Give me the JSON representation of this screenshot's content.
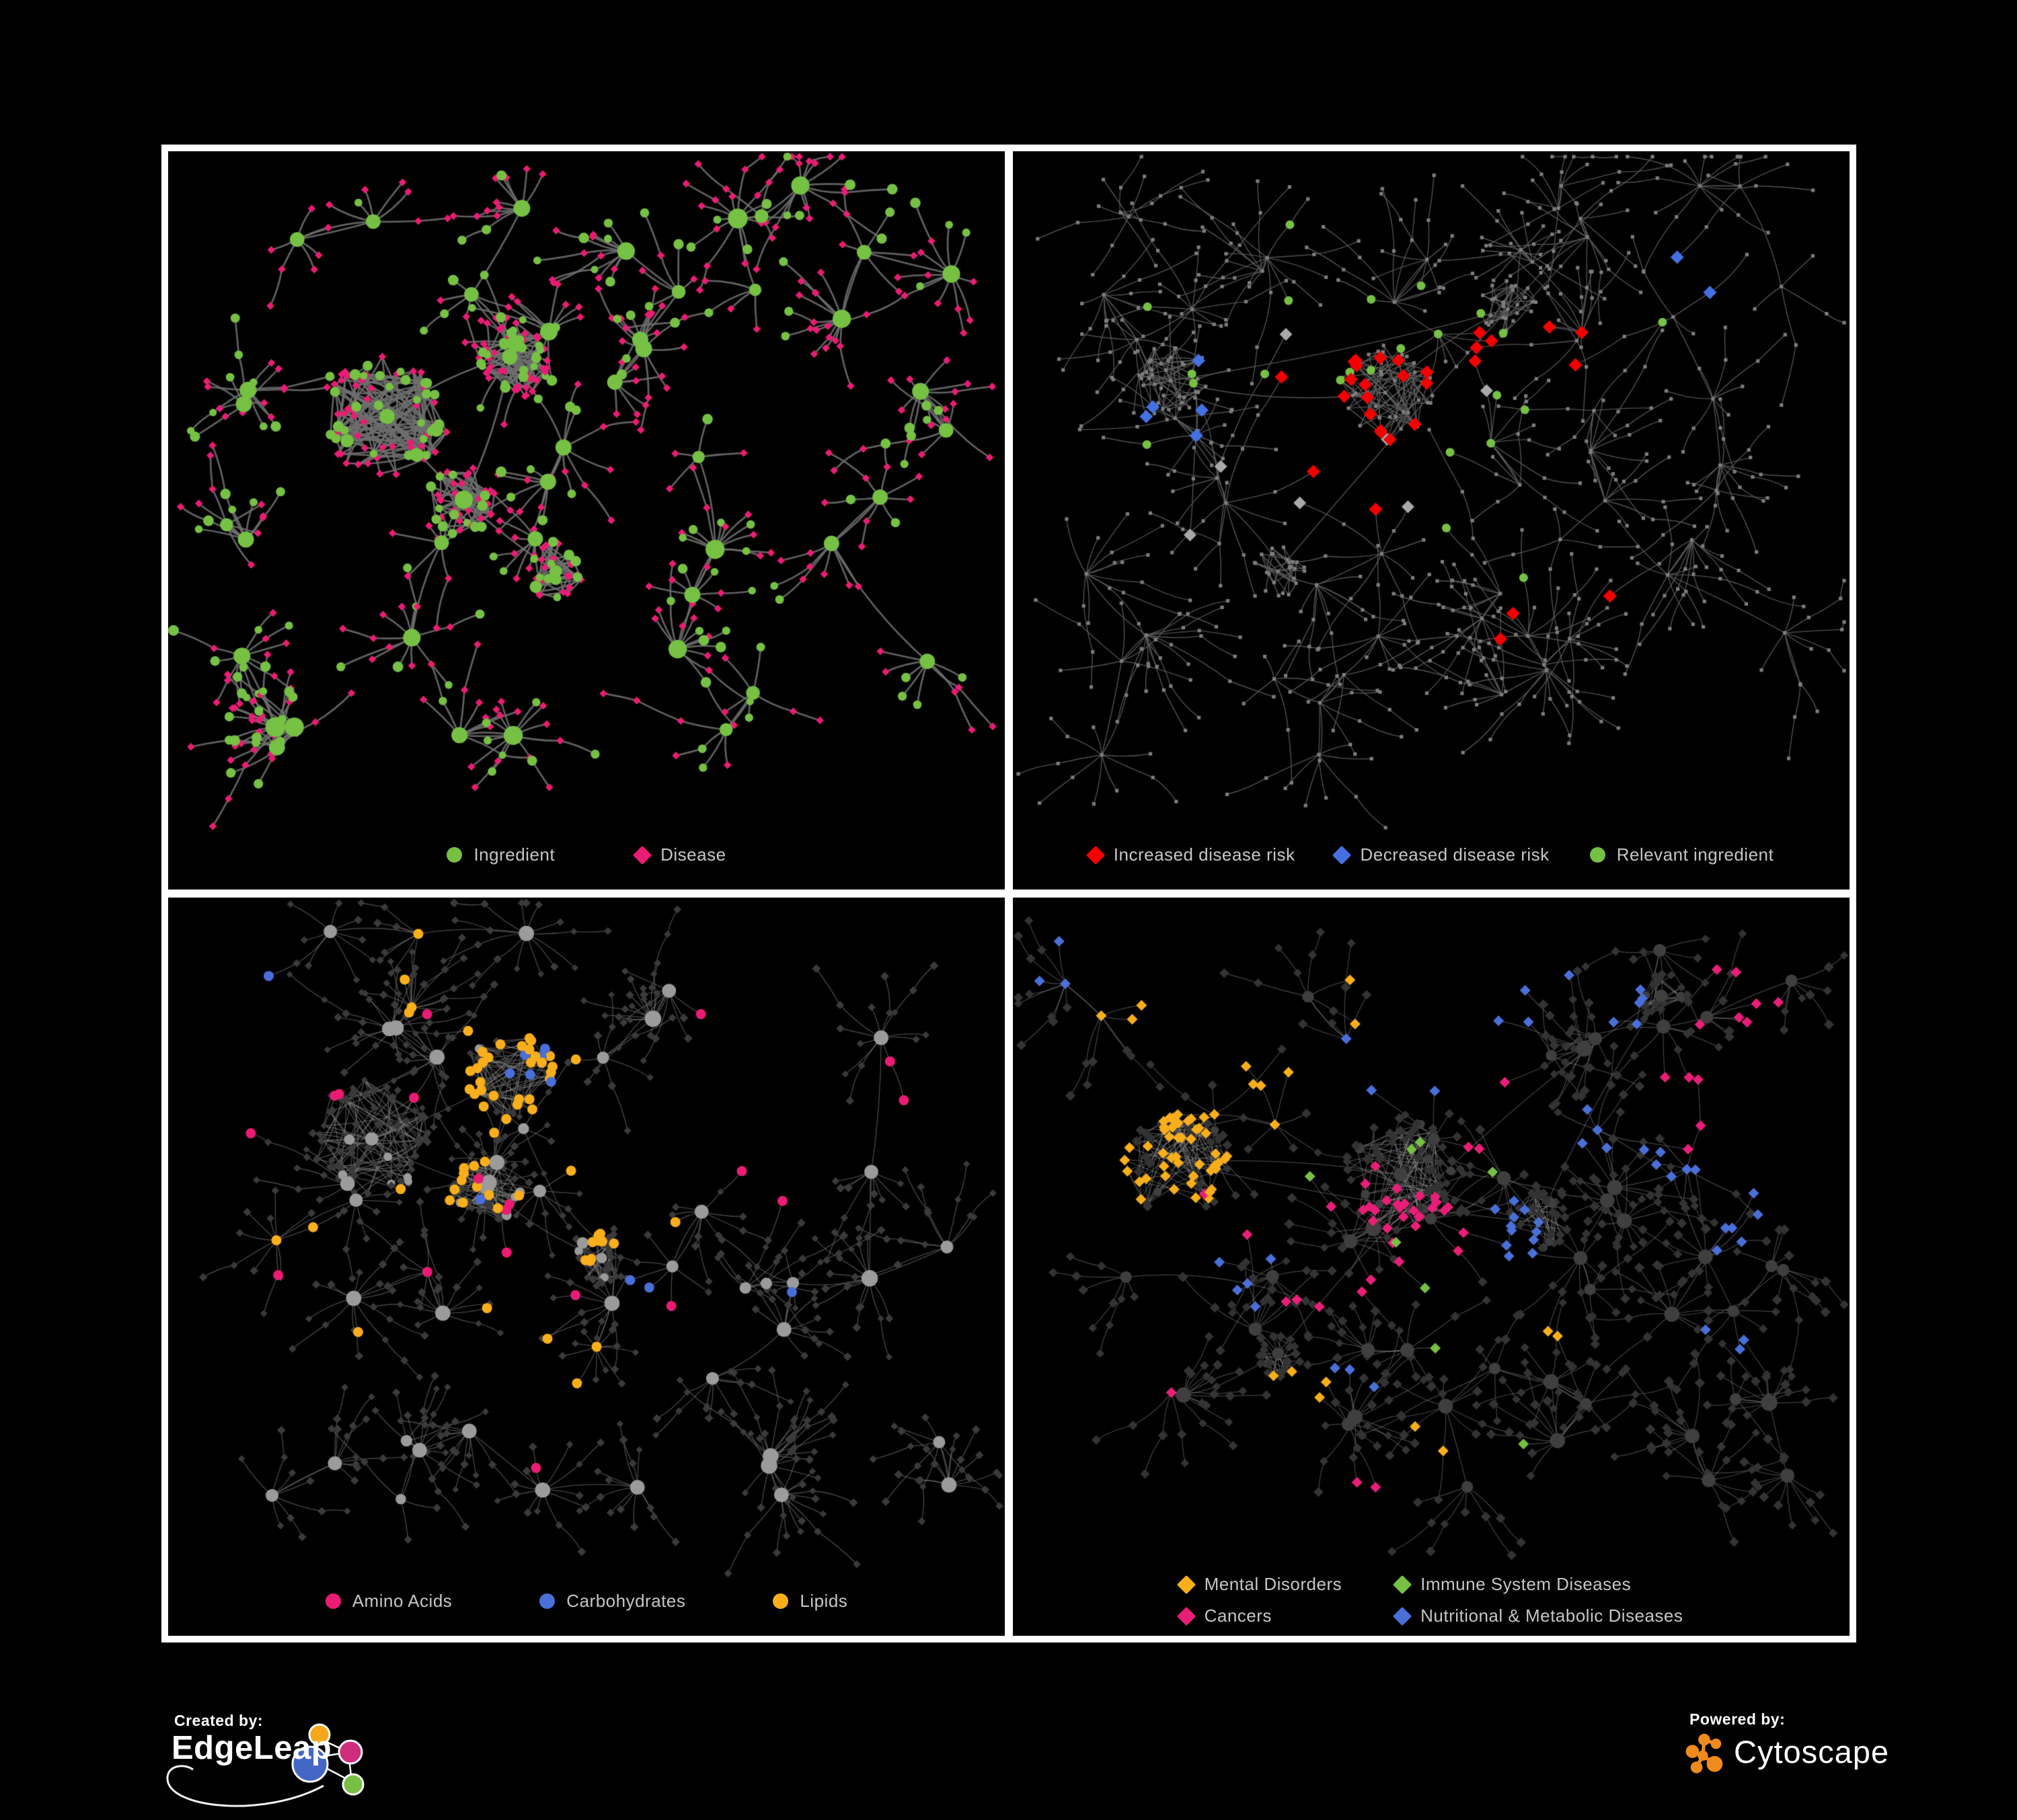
{
  "branding": {
    "created_by_label": "Created by:",
    "created_by_name": "EdgeLeap",
    "powered_by_label": "Powered by:",
    "powered_by_name": "Cytoscape"
  },
  "colors": {
    "background": "#000000",
    "frame": "#ffffff",
    "legend_text": "#c6c6c6",
    "green": "#76C043",
    "disease_pink": "#EA1C74",
    "risk_red": "#F40000",
    "risk_blue": "#4470E2",
    "amber": "#F9AE1B",
    "cancer_pink": "#E91E78",
    "metabolic_blue": "#4A6FD8",
    "edgeleap_orange": "#F5A81C",
    "edgeleap_magenta": "#CF2D7B",
    "edgeleap_blue": "#4467C6",
    "edgeleap_green": "#76BF44",
    "cytoscape_orange": "#EF8B1C"
  },
  "chart_data": {
    "type": "network",
    "panels": [
      {
        "id": "ingredient-disease",
        "legend_gap": "120px",
        "legend": [
          {
            "label": "Ingredient",
            "shape": "circle",
            "color": "#76C043"
          },
          {
            "label": "Disease",
            "shape": "diamond",
            "color": "#EA1C74"
          }
        ],
        "network": {
          "seed": 101,
          "stars": 44,
          "leafRange": [
            4,
            12
          ],
          "chain": 0.32,
          "distScale": 1.0,
          "hairballs": [
            [
              0.24,
              0.4,
              0.105,
              78
            ],
            [
              0.4,
              0.3,
              0.075,
              52
            ],
            [
              0.34,
              0.54,
              0.06,
              38
            ],
            [
              0.46,
              0.66,
              0.05,
              30
            ]
          ],
          "edge": {
            "color": "#6E6E6E",
            "width": 2.7,
            "alpha": 0.88
          },
          "paint": {
            "mode": "two-class",
            "colors": [
              "#76C043",
              "#EA1C74"
            ],
            "greenLeafP": 0.3
          }
        }
      },
      {
        "id": "disease-risk",
        "legend_gap": "60px",
        "legend": [
          {
            "label": "Increased disease risk",
            "shape": "diamond",
            "color": "#F40000"
          },
          {
            "label": "Decreased disease risk",
            "shape": "diamond",
            "color": "#4470E2"
          },
          {
            "label": "Relevant ingredient",
            "shape": "circle",
            "color": "#76C043"
          }
        ],
        "network": {
          "seed": 202,
          "stars": 58,
          "leafRange": [
            4,
            11
          ],
          "chain": 0.5,
          "distScale": 1.25,
          "hairballs": [
            [
              0.44,
              0.36,
              0.08,
              55
            ],
            [
              0.16,
              0.34,
              0.06,
              32
            ],
            [
              0.6,
              0.22,
              0.05,
              26
            ],
            [
              0.3,
              0.66,
              0.045,
              22
            ]
          ],
          "edge": {
            "color": "#5F5F5F",
            "width": 1.4,
            "alpha": 0.85
          },
          "paint": {
            "mode": "highlight",
            "base": {
              "color": "#7D7D7D",
              "size": 2.6
            },
            "overlays": [
              {
                "shape": "diamond",
                "color": "#F40000",
                "size": 10,
                "groups": [
                  [
                    0.47,
                    0.37,
                    0.18,
                    20
                  ],
                  [
                    0.68,
                    0.3,
                    0.07,
                    3
                  ],
                  [
                    0.33,
                    0.33,
                    0.05,
                    2
                  ],
                  [
                    0.62,
                    0.77,
                    0.045,
                    2
                  ],
                  [
                    0.72,
                    0.67,
                    0.04,
                    1
                  ],
                  [
                    0.4,
                    0.52,
                    0.08,
                    2
                  ]
                ]
              },
              {
                "shape": "diamond",
                "color": "#4470E2",
                "size": 10,
                "groups": [
                  [
                    0.17,
                    0.35,
                    0.09,
                    5
                  ],
                  [
                    0.855,
                    0.155,
                    0.045,
                    2
                  ]
                ]
              },
              {
                "shape": "diamond",
                "color": "#A9A9A9",
                "size": 9.5,
                "groups": [
                  [
                    0.29,
                    0.4,
                    0.16,
                    3
                  ],
                  [
                    0.48,
                    0.49,
                    0.1,
                    2
                  ],
                  [
                    0.56,
                    0.38,
                    0.06,
                    1
                  ],
                  [
                    0.19,
                    0.63,
                    0.04,
                    1
                  ]
                ]
              },
              {
                "shape": "circle",
                "color": "#76C043",
                "size": 6.5,
                "groups": [
                  [
                    0.44,
                    0.35,
                    0.24,
                    14
                  ],
                  [
                    0.14,
                    0.28,
                    0.1,
                    3
                  ],
                  [
                    0.3,
                    0.15,
                    0.08,
                    2
                  ],
                  [
                    0.84,
                    0.155,
                    0.04,
                    1
                  ],
                  [
                    0.57,
                    0.57,
                    0.12,
                    2
                  ],
                  [
                    0.12,
                    0.5,
                    0.06,
                    1
                  ]
                ]
              }
            ]
          }
        }
      },
      {
        "id": "nutrient-classes",
        "legend_gap": "130px",
        "legend": [
          {
            "label": "Amino Acids",
            "shape": "circle",
            "color": "#EA1C74"
          },
          {
            "label": "Carbohydrates",
            "shape": "circle",
            "color": "#4A6FD8"
          },
          {
            "label": "Lipids",
            "shape": "circle",
            "color": "#F9AE1B"
          }
        ],
        "network": {
          "seed": 303,
          "stars": 46,
          "leafRange": [
            4,
            12
          ],
          "chain": 0.4,
          "distScale": 1.0,
          "hairballs": [
            [
              0.22,
              0.36,
              0.1,
              68
            ],
            [
              0.4,
              0.25,
              0.075,
              56
            ],
            [
              0.37,
              0.44,
              0.06,
              40
            ],
            [
              0.52,
              0.56,
              0.045,
              34
            ]
          ],
          "edge": {
            "color": "#8C8C8C",
            "width": 1.35,
            "alpha": 0.5
          },
          "paint": {
            "mode": "categorized",
            "hub": {
              "shape": "circle",
              "color": "#9B9B9B"
            },
            "leaf": {
              "shape": "diamond",
              "color": "#3A3A3A",
              "size": 5.0
            },
            "overlays": [
              {
                "shape": "circle",
                "color": "#F9AE1B",
                "size": 7.5,
                "groups": [
                  [
                    0.41,
                    0.23,
                    0.1,
                    30
                  ],
                  [
                    0.37,
                    0.4,
                    0.08,
                    10
                  ],
                  [
                    0.52,
                    0.55,
                    0.04,
                    6
                  ],
                  [
                    0.3,
                    0.63,
                    0.22,
                    6
                  ],
                  [
                    0.6,
                    0.42,
                    0.16,
                    5
                  ],
                  [
                    0.25,
                    0.08,
                    0.1,
                    4
                  ],
                  [
                    0.13,
                    0.52,
                    0.06,
                    2
                  ],
                  [
                    0.47,
                    0.75,
                    0.1,
                    3
                  ]
                ]
              },
              {
                "shape": "circle",
                "color": "#EA1C74",
                "size": 7.5,
                "groups": [
                  [
                    0.48,
                    0.63,
                    0.26,
                    7
                  ],
                  [
                    0.14,
                    0.44,
                    0.16,
                    3
                  ],
                  [
                    0.69,
                    0.32,
                    0.12,
                    3
                  ],
                  [
                    0.25,
                    0.22,
                    0.1,
                    2
                  ],
                  [
                    0.9,
                    0.26,
                    0.06,
                    2
                  ],
                  [
                    0.41,
                    0.9,
                    0.06,
                    1
                  ],
                  [
                    0.03,
                    0.25,
                    0.04,
                    1
                  ]
                ]
              },
              {
                "shape": "circle",
                "color": "#4A6FD8",
                "size": 7.5,
                "groups": [
                  [
                    0.42,
                    0.24,
                    0.055,
                    6
                  ],
                  [
                    0.08,
                    0.23,
                    0.035,
                    1
                  ],
                  [
                    0.6,
                    0.6,
                    0.08,
                    2
                  ],
                  [
                    0.77,
                    0.6,
                    0.04,
                    1
                  ],
                  [
                    0.34,
                    0.47,
                    0.04,
                    1
                  ]
                ]
              }
            ]
          }
        }
      },
      {
        "id": "disease-classes",
        "legend_layout": "grid",
        "legend": [
          {
            "label": "Mental Disorders",
            "shape": "diamond",
            "color": "#F9AE1B"
          },
          {
            "label": "Immune System Diseases",
            "shape": "diamond",
            "color": "#76C043"
          },
          {
            "label": "Cancers",
            "shape": "diamond",
            "color": "#E91E78"
          },
          {
            "label": "Nutritional & Metabolic Diseases",
            "shape": "diamond",
            "color": "#4A6FD8"
          }
        ],
        "network": {
          "seed": 404,
          "stars": 52,
          "leafRange": [
            4,
            12
          ],
          "chain": 0.42,
          "distScale": 1.05,
          "hairballs": [
            [
              0.17,
              0.4,
              0.09,
              58
            ],
            [
              0.46,
              0.42,
              0.095,
              68
            ],
            [
              0.64,
              0.5,
              0.05,
              28
            ],
            [
              0.8,
              0.12,
              0.04,
              18
            ],
            [
              0.3,
              0.72,
              0.04,
              20
            ]
          ],
          "edge": {
            "color": "#9A9A9A",
            "width": 1.25,
            "alpha": 0.42
          },
          "paint": {
            "mode": "categorized",
            "hub": {
              "shape": "circle",
              "color": "#3F3F3F"
            },
            "leaf": {
              "shape": "diamond",
              "color": "#333333",
              "size": 6.2
            },
            "overlays": [
              {
                "shape": "diamond",
                "color": "#F9AE1B",
                "size": 8,
                "groups": [
                  [
                    0.155,
                    0.4,
                    0.115,
                    48
                  ],
                  [
                    0.3,
                    0.28,
                    0.07,
                    5
                  ],
                  [
                    0.12,
                    0.1,
                    0.05,
                    3
                  ],
                  [
                    0.33,
                    0.82,
                    0.08,
                    4
                  ],
                  [
                    0.52,
                    0.88,
                    0.04,
                    2
                  ],
                  [
                    0.67,
                    0.7,
                    0.035,
                    2
                  ],
                  [
                    0.4,
                    0.13,
                    0.04,
                    2
                  ]
                ]
              },
              {
                "shape": "diamond",
                "color": "#E91E78",
                "size": 8,
                "groups": [
                  [
                    0.45,
                    0.52,
                    0.12,
                    30
                  ],
                  [
                    0.92,
                    0.12,
                    0.05,
                    6
                  ],
                  [
                    0.86,
                    0.3,
                    0.05,
                    6
                  ],
                  [
                    0.34,
                    0.62,
                    0.06,
                    3
                  ],
                  [
                    0.57,
                    0.28,
                    0.06,
                    3
                  ],
                  [
                    0.24,
                    0.5,
                    0.04,
                    2
                  ],
                  [
                    0.45,
                    0.95,
                    0.04,
                    2
                  ],
                  [
                    0.12,
                    0.72,
                    0.03,
                    1
                  ]
                ]
              },
              {
                "shape": "diamond",
                "color": "#4A6FD8",
                "size": 8,
                "groups": [
                  [
                    0.6,
                    0.5,
                    0.07,
                    12
                  ],
                  [
                    0.57,
                    0.06,
                    0.05,
                    4
                  ],
                  [
                    0.75,
                    0.13,
                    0.05,
                    5
                  ],
                  [
                    0.83,
                    0.38,
                    0.07,
                    6
                  ],
                  [
                    0.9,
                    0.55,
                    0.05,
                    4
                  ],
                  [
                    0.25,
                    0.6,
                    0.07,
                    5
                  ],
                  [
                    0.1,
                    0.06,
                    0.04,
                    3
                  ],
                  [
                    0.45,
                    0.22,
                    0.05,
                    3
                  ],
                  [
                    0.95,
                    0.45,
                    0.03,
                    2
                  ],
                  [
                    0.7,
                    0.35,
                    0.05,
                    4
                  ],
                  [
                    0.4,
                    0.75,
                    0.05,
                    3
                  ],
                  [
                    0.88,
                    0.7,
                    0.04,
                    3
                  ]
                ]
              },
              {
                "shape": "diamond",
                "color": "#76C043",
                "size": 8,
                "groups": [
                  [
                    0.46,
                    0.33,
                    0.08,
                    2
                  ],
                  [
                    0.52,
                    0.57,
                    0.06,
                    2
                  ],
                  [
                    0.33,
                    0.38,
                    0.05,
                    1
                  ],
                  [
                    0.5,
                    0.72,
                    0.04,
                    1
                  ],
                  [
                    0.64,
                    0.88,
                    0.03,
                    1
                  ],
                  [
                    0.58,
                    0.42,
                    0.04,
                    1
                  ]
                ]
              }
            ]
          }
        }
      }
    ]
  }
}
